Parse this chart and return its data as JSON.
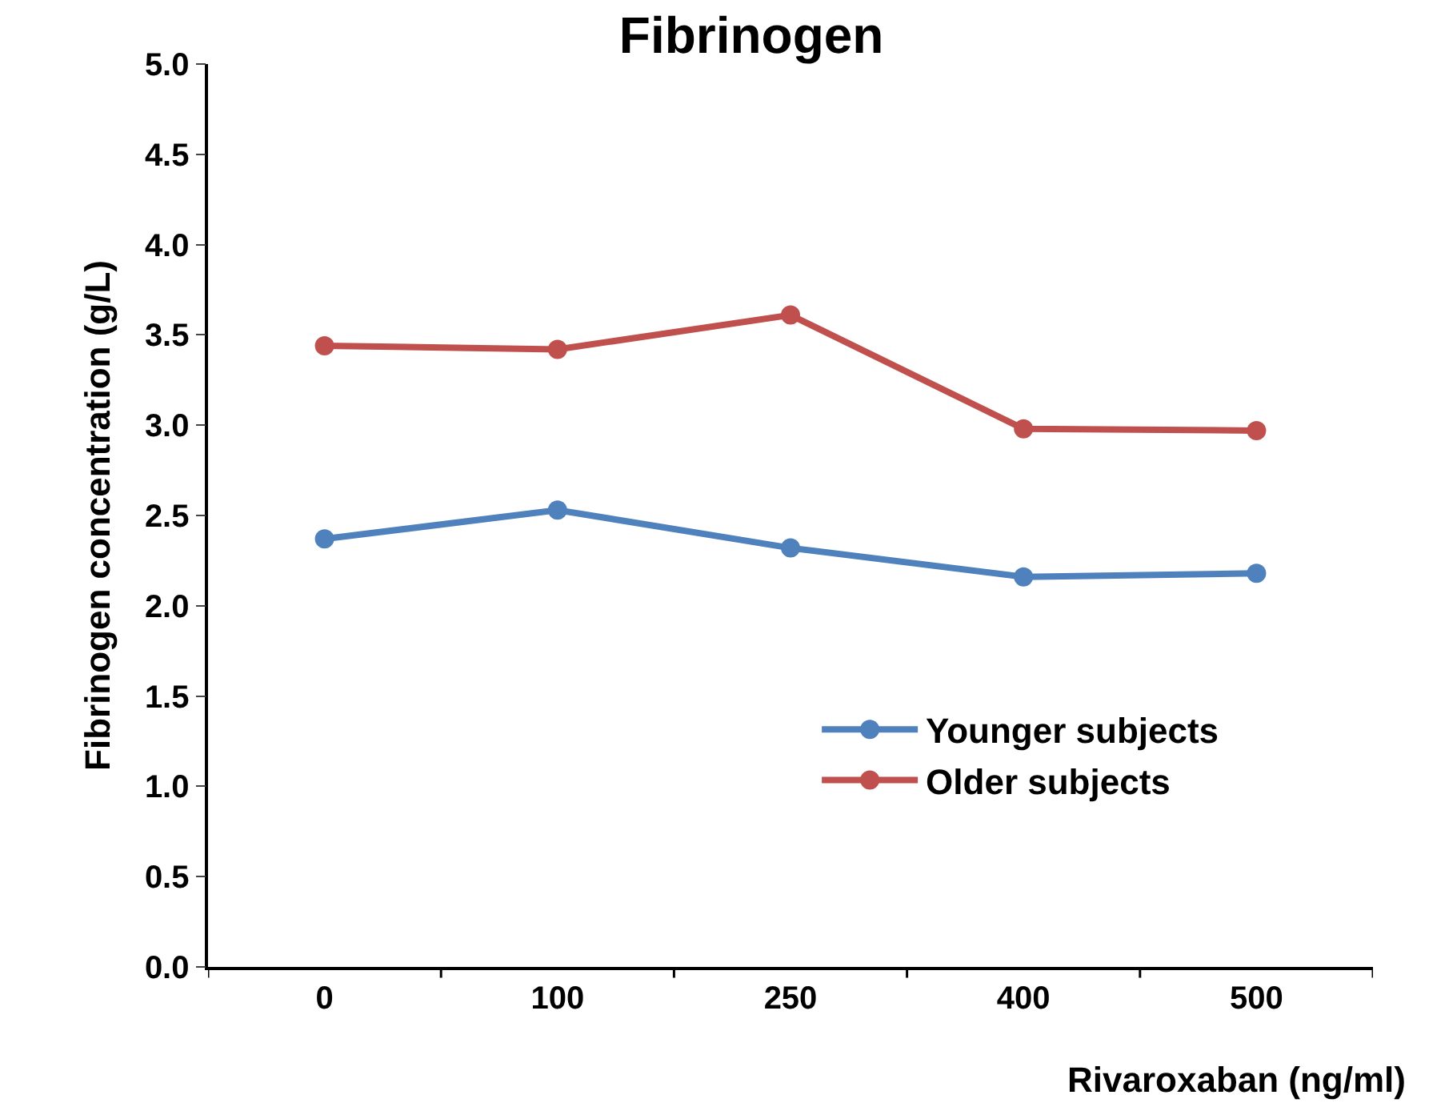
{
  "chart_data": {
    "type": "line",
    "title": "Fibrinogen",
    "xlabel": "Rivaroxaban (ng/ml)",
    "ylabel": "Fibrinogen concentration (g/L)",
    "categories": [
      "0",
      "100",
      "250",
      "400",
      "500"
    ],
    "series": [
      {
        "name": "Younger subjects",
        "color": "#4f81bd",
        "values": [
          2.37,
          2.53,
          2.32,
          2.16,
          2.18
        ]
      },
      {
        "name": "Older subjects",
        "color": "#c0504d",
        "values": [
          3.44,
          3.42,
          3.61,
          2.98,
          2.97
        ]
      }
    ],
    "ylim": [
      0,
      5
    ],
    "yticks": [
      {
        "value": 0,
        "label": "0.0"
      },
      {
        "value": 0.5,
        "label": "0.5"
      },
      {
        "value": 1,
        "label": "1.0"
      },
      {
        "value": 1.5,
        "label": "1.5"
      },
      {
        "value": 2,
        "label": "2.0"
      },
      {
        "value": 2.5,
        "label": "2.5"
      },
      {
        "value": 3,
        "label": "3.0"
      },
      {
        "value": 3.5,
        "label": "3.5"
      },
      {
        "value": 4,
        "label": "4.0"
      },
      {
        "value": 4.5,
        "label": "4.5"
      },
      {
        "value": 5,
        "label": "5.0"
      }
    ],
    "legend": "bottom right",
    "marker": "circle",
    "line_style": "solid"
  }
}
